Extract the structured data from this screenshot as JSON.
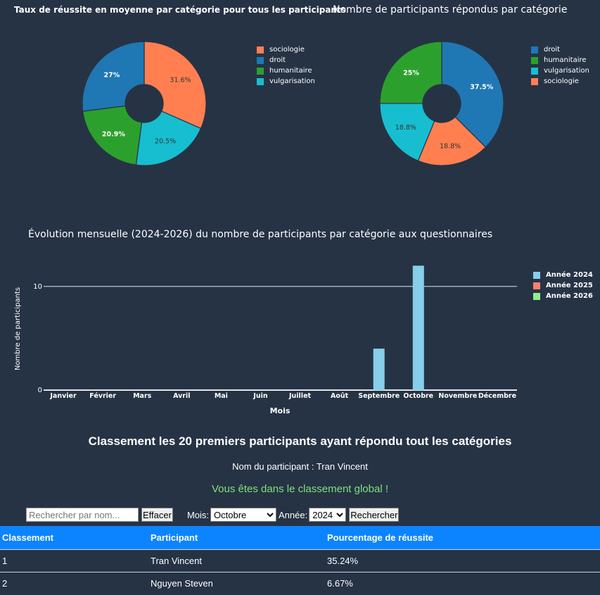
{
  "pie1": {
    "title": "Taux de réussite en moyenne par catégorie pour tous les participants",
    "legend": [
      {
        "label": "sociologie",
        "color": "#ff7f50"
      },
      {
        "label": "droit",
        "color": "#1f77b4"
      },
      {
        "label": "humanitaire",
        "color": "#2ca02c"
      },
      {
        "label": "vulgarisation",
        "color": "#17becf"
      }
    ]
  },
  "pie2": {
    "title": "Nombre de participants répondus par catégorie",
    "legend": [
      {
        "label": "droit",
        "color": "#1f77b4"
      },
      {
        "label": "humanitaire",
        "color": "#2ca02c"
      },
      {
        "label": "vulgarisation",
        "color": "#17becf"
      },
      {
        "label": "sociologie",
        "color": "#ff7f50"
      }
    ]
  },
  "bar": {
    "title": "Évolution mensuelle (2024-2026) du nombre de participants par catégorie aux questionnaires",
    "ylabel": "Nombre de participants",
    "xlabel": "Mois",
    "yticks": [
      "0",
      "10"
    ],
    "legend": [
      {
        "label": "Année 2024",
        "color": "#87ceeb"
      },
      {
        "label": "Année 2025",
        "color": "#fa8072"
      },
      {
        "label": "Année 2026",
        "color": "#90ee90"
      }
    ]
  },
  "chart_data": [
    {
      "type": "pie",
      "title": "Taux de réussite en moyenne par catégorie pour tous les participants",
      "slices": [
        {
          "label": "sociologie",
          "value": 31.6,
          "text": "31.6%",
          "color": "#ff7f50"
        },
        {
          "label": "vulgarisation",
          "value": 20.5,
          "text": "20.5%",
          "color": "#17becf"
        },
        {
          "label": "humanitaire",
          "value": 20.9,
          "text": "20.9%",
          "color": "#2ca02c"
        },
        {
          "label": "droit",
          "value": 27,
          "text": "27%",
          "color": "#1f77b4"
        }
      ]
    },
    {
      "type": "pie",
      "title": "Nombre de participants répondus par catégorie",
      "slices": [
        {
          "label": "droit",
          "value": 37.5,
          "text": "37.5%",
          "color": "#1f77b4"
        },
        {
          "label": "sociologie",
          "value": 18.8,
          "text": "18.8%",
          "color": "#ff7f50"
        },
        {
          "label": "vulgarisation",
          "value": 18.8,
          "text": "18.8%",
          "color": "#17becf"
        },
        {
          "label": "humanitaire",
          "value": 25,
          "text": "25%",
          "color": "#2ca02c"
        }
      ]
    },
    {
      "type": "bar",
      "title": "Évolution mensuelle (2024-2026) du nombre de participants par catégorie aux questionnaires",
      "xlabel": "Mois",
      "ylabel": "Nombre de participants",
      "categories": [
        "Janvier",
        "Février",
        "Mars",
        "Avril",
        "Mai",
        "Juin",
        "Juillet",
        "Août",
        "Septembre",
        "Octobre",
        "Novembre",
        "Décembre"
      ],
      "series": [
        {
          "name": "Année 2024",
          "color": "#87ceeb",
          "values": [
            0,
            0,
            0,
            0,
            0,
            0,
            0,
            0,
            4,
            12,
            0,
            0
          ]
        },
        {
          "name": "Année 2025",
          "color": "#fa8072",
          "values": [
            0,
            0,
            0,
            0,
            0,
            0,
            0,
            0,
            0,
            0,
            0,
            0
          ]
        },
        {
          "name": "Année 2026",
          "color": "#90ee90",
          "values": [
            0,
            0,
            0,
            0,
            0,
            0,
            0,
            0,
            0,
            0,
            0,
            0
          ]
        }
      ],
      "ylim": [
        0,
        12.5
      ],
      "grid": true,
      "legend_position": "top-right"
    }
  ],
  "ranking": {
    "title": "Classement les 20 premiers participants ayant répondu tout les catégories",
    "participant_line": "Nom du participant : Tran Vincent",
    "global_message": "Vous êtes dans le classement global !",
    "search_placeholder": "Rechercher par nom...",
    "clear_label": "Effacer",
    "month_label": "Mois:",
    "month_value": "Octobre",
    "year_label": "Année:",
    "year_value": "2024",
    "search_label": "Rechercher",
    "columns": [
      "Classement",
      "Participant",
      "Pourcentage de réussite"
    ],
    "rows": [
      [
        "1",
        "Tran Vincent",
        "35.24%"
      ],
      [
        "2",
        "Nguyen Steven",
        "6.67%"
      ]
    ]
  }
}
